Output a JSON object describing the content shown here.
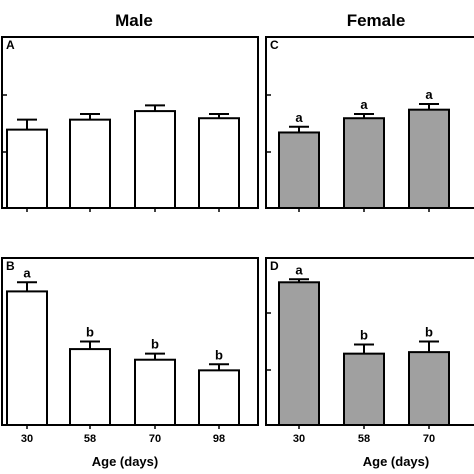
{
  "headers": {
    "male": "Male",
    "female": "Female"
  },
  "xlabel": "Age (days)",
  "colors": {
    "male_fill": "#ffffff",
    "female_fill": "#a0a0a0",
    "stroke": "#000000"
  },
  "chart_data": [
    {
      "type": "bar",
      "panel": "A",
      "sex": "male",
      "categories": [
        "30",
        "58",
        "70",
        "98"
      ],
      "values": [
        0.55,
        0.62,
        0.68,
        0.63
      ],
      "errors": [
        0.07,
        0.04,
        0.04,
        0.03
      ],
      "significance": [
        "",
        "",
        "",
        ""
      ],
      "ylim": [
        0,
        1.2
      ],
      "xlabel": ""
    },
    {
      "type": "bar",
      "panel": "B",
      "sex": "male",
      "categories": [
        "30",
        "58",
        "70",
        "98"
      ],
      "values": [
        0.88,
        0.5,
        0.43,
        0.36
      ],
      "errors": [
        0.06,
        0.05,
        0.04,
        0.04
      ],
      "significance": [
        "a",
        "b",
        "b",
        "b"
      ],
      "ylim": [
        0,
        1.1
      ],
      "xlabel": ""
    },
    {
      "type": "bar",
      "panel": "C",
      "sex": "female",
      "categories": [
        "30",
        "58",
        "70"
      ],
      "values": [
        0.53,
        0.63,
        0.69
      ],
      "errors": [
        0.04,
        0.03,
        0.04
      ],
      "significance": [
        "a",
        "a",
        "a"
      ],
      "ylim": [
        0,
        1.2
      ],
      "xlabel": ""
    },
    {
      "type": "bar",
      "panel": "D",
      "sex": "female",
      "categories": [
        "30",
        "58",
        "70"
      ],
      "values": [
        0.94,
        0.47,
        0.48
      ],
      "errors": [
        0.02,
        0.06,
        0.07
      ],
      "significance": [
        "a",
        "b",
        "b"
      ],
      "ylim": [
        0,
        1.1
      ],
      "xlabel": "Age (days)"
    }
  ]
}
